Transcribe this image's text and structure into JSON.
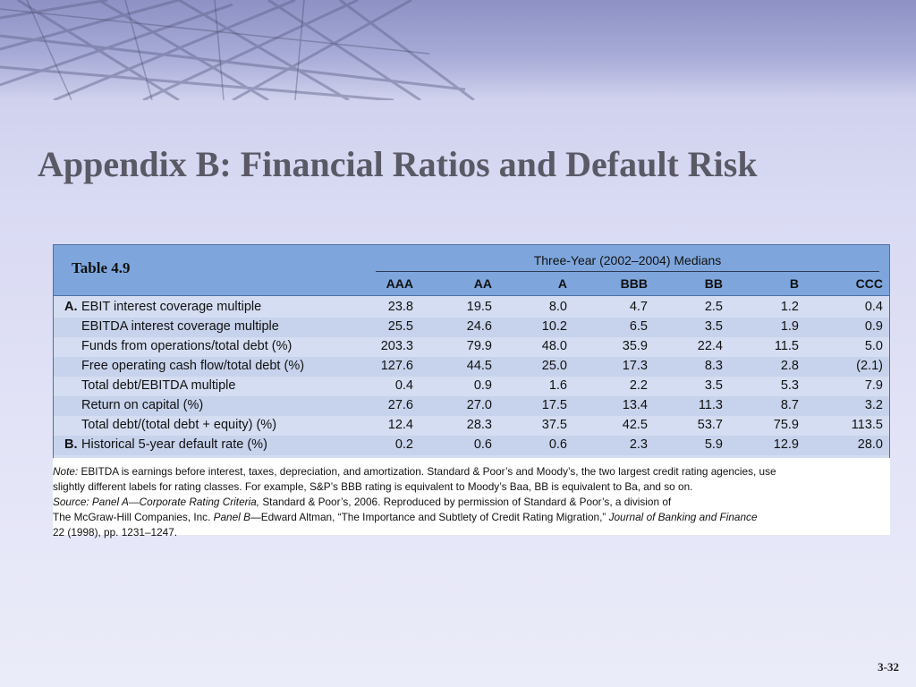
{
  "slide": {
    "title": "Appendix B: Financial Ratios and Default Risk",
    "number": "3-32"
  },
  "table": {
    "label": "Table 4.9",
    "span_header": "Three-Year (2002–2004) Medians",
    "columns": [
      "AAA",
      "AA",
      "A",
      "BBB",
      "BB",
      "B",
      "CCC"
    ],
    "rows": [
      {
        "prefix": "A.",
        "label": "EBIT interest coverage multiple",
        "values": [
          "23.8",
          "19.5",
          "8.0",
          "4.7",
          "2.5",
          "1.2",
          "0.4"
        ]
      },
      {
        "prefix": "",
        "label": "EBITDA interest coverage multiple",
        "values": [
          "25.5",
          "24.6",
          "10.2",
          "6.5",
          "3.5",
          "1.9",
          "0.9"
        ]
      },
      {
        "prefix": "",
        "label": "Funds from operations/total debt (%)",
        "values": [
          "203.3",
          "79.9",
          "48.0",
          "35.9",
          "22.4",
          "11.5",
          "5.0"
        ]
      },
      {
        "prefix": "",
        "label": "Free operating cash flow/total debt (%)",
        "values": [
          "127.6",
          "44.5",
          "25.0",
          "17.3",
          "8.3",
          "2.8",
          "(2.1)"
        ]
      },
      {
        "prefix": "",
        "label": "Total debt/EBITDA multiple",
        "values": [
          "0.4",
          "0.9",
          "1.6",
          "2.2",
          "3.5",
          "5.3",
          "7.9"
        ]
      },
      {
        "prefix": "",
        "label": "Return on capital (%)",
        "values": [
          "27.6",
          "27.0",
          "17.5",
          "13.4",
          "11.3",
          "8.7",
          "3.2"
        ]
      },
      {
        "prefix": "",
        "label": "Total debt/(total debt + equity) (%)",
        "values": [
          "12.4",
          "28.3",
          "37.5",
          "42.5",
          "53.7",
          "75.9",
          "113.5"
        ]
      },
      {
        "prefix": "B.",
        "label": "Historical 5-year default rate (%)",
        "values": [
          "0.2",
          "0.6",
          "0.6",
          "2.3",
          "5.9",
          "12.9",
          "28.0"
        ]
      }
    ]
  },
  "notes": {
    "note_label": "Note:",
    "note_line1": "EBITDA is earnings before interest, taxes, depreciation, and amortization. Standard & Poor’s and Moody’s, the two largest credit rating agencies, use",
    "note_line2": "slightly different labels for rating classes. For example, S&P’s BBB rating is equivalent to Moody’s Baa, BB is equivalent to Ba, and so on.",
    "source_label": "Source: Panel A—Corporate Rating Criteria,",
    "source_line1": "Standard & Poor’s, 2006. Reproduced by permission of Standard & Poor’s, a division of",
    "source_line2a": "The McGraw-Hill Companies, Inc.",
    "source_panel_b": "Panel B",
    "source_line2b": "—Edward Altman, “The Importance and Subtlety of Credit Rating Migration,”",
    "source_journal": "Journal of Banking and Finance",
    "source_line3": "22 (1998), pp. 1231–1247."
  }
}
